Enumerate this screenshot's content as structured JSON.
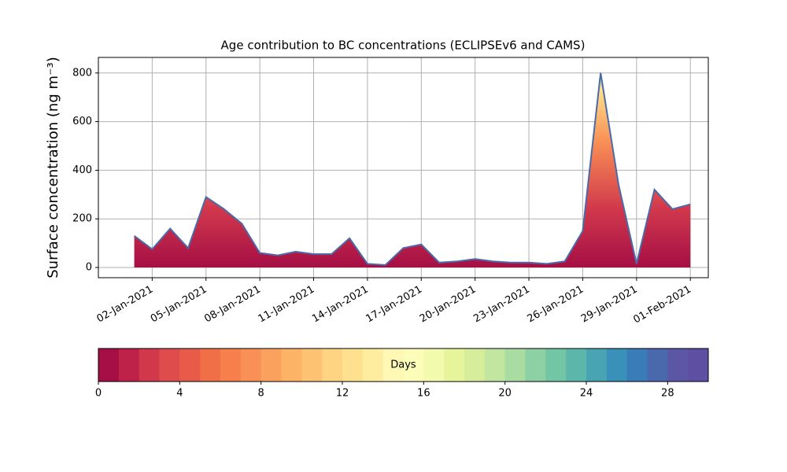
{
  "chart_data": {
    "type": "area",
    "title": "Age contribution to BC concentrations (ECLIPSEv6 and CAMS)",
    "y_label": "Surface concentration (ng m⁻³)",
    "x": [
      "2021-01-01",
      "2021-01-02",
      "2021-01-03",
      "2021-01-04",
      "2021-01-05",
      "2021-01-06",
      "2021-01-07",
      "2021-01-08",
      "2021-01-09",
      "2021-01-10",
      "2021-01-11",
      "2021-01-12",
      "2021-01-13",
      "2021-01-14",
      "2021-01-15",
      "2021-01-16",
      "2021-01-17",
      "2021-01-18",
      "2021-01-19",
      "2021-01-20",
      "2021-01-21",
      "2021-01-22",
      "2021-01-23",
      "2021-01-24",
      "2021-01-25",
      "2021-01-26",
      "2021-01-27",
      "2021-01-28",
      "2021-01-29",
      "2021-01-30",
      "2021-01-31",
      "2021-02-01"
    ],
    "values": [
      130,
      75,
      160,
      80,
      290,
      240,
      180,
      60,
      50,
      65,
      55,
      55,
      120,
      15,
      10,
      80,
      95,
      20,
      25,
      35,
      25,
      20,
      20,
      15,
      25,
      150,
      800,
      340,
      15,
      320,
      240,
      260
    ],
    "line_color": "#4c6aa8",
    "xlim": [
      "2020-12-30",
      "2021-02-02"
    ],
    "xticks": [
      {
        "value": "2021-01-02",
        "label": "02-Jan-2021"
      },
      {
        "value": "2021-01-05",
        "label": "05-Jan-2021"
      },
      {
        "value": "2021-01-08",
        "label": "08-Jan-2021"
      },
      {
        "value": "2021-01-11",
        "label": "11-Jan-2021"
      },
      {
        "value": "2021-01-14",
        "label": "14-Jan-2021"
      },
      {
        "value": "2021-01-17",
        "label": "17-Jan-2021"
      },
      {
        "value": "2021-01-20",
        "label": "20-Jan-2021"
      },
      {
        "value": "2021-01-23",
        "label": "23-Jan-2021"
      },
      {
        "value": "2021-01-26",
        "label": "26-Jan-2021"
      },
      {
        "value": "2021-01-29",
        "label": "29-Jan-2021"
      },
      {
        "value": "2021-02-01",
        "label": "01-Feb-2021"
      }
    ],
    "ylim": [
      -42,
      864
    ],
    "yticks": [
      0,
      200,
      400,
      600,
      800
    ],
    "grid": true,
    "colorbar": {
      "label": "Days",
      "lim": [
        0,
        30
      ],
      "ticks": [
        0,
        4,
        8,
        12,
        16,
        20,
        24,
        28
      ],
      "colors": [
        "#a50f45",
        "#be2248",
        "#d1384c",
        "#de4c4b",
        "#e85b49",
        "#f06f46",
        "#f67f4b",
        "#f99055",
        "#fba15e",
        "#fdb366",
        "#fdc373",
        "#fed381",
        "#fee18e",
        "#feec9f",
        "#fff8b4",
        "#fbfdb8",
        "#f2faae",
        "#e6f59a",
        "#d6ee9b",
        "#c2e59f",
        "#a8dca2",
        "#8cd0a4",
        "#72c6a5",
        "#5cb6aa",
        "#48a4b2",
        "#3990b8",
        "#3a7cb8",
        "#4a69ad",
        "#5b57a4",
        "#5e4fa2"
      ]
    }
  }
}
